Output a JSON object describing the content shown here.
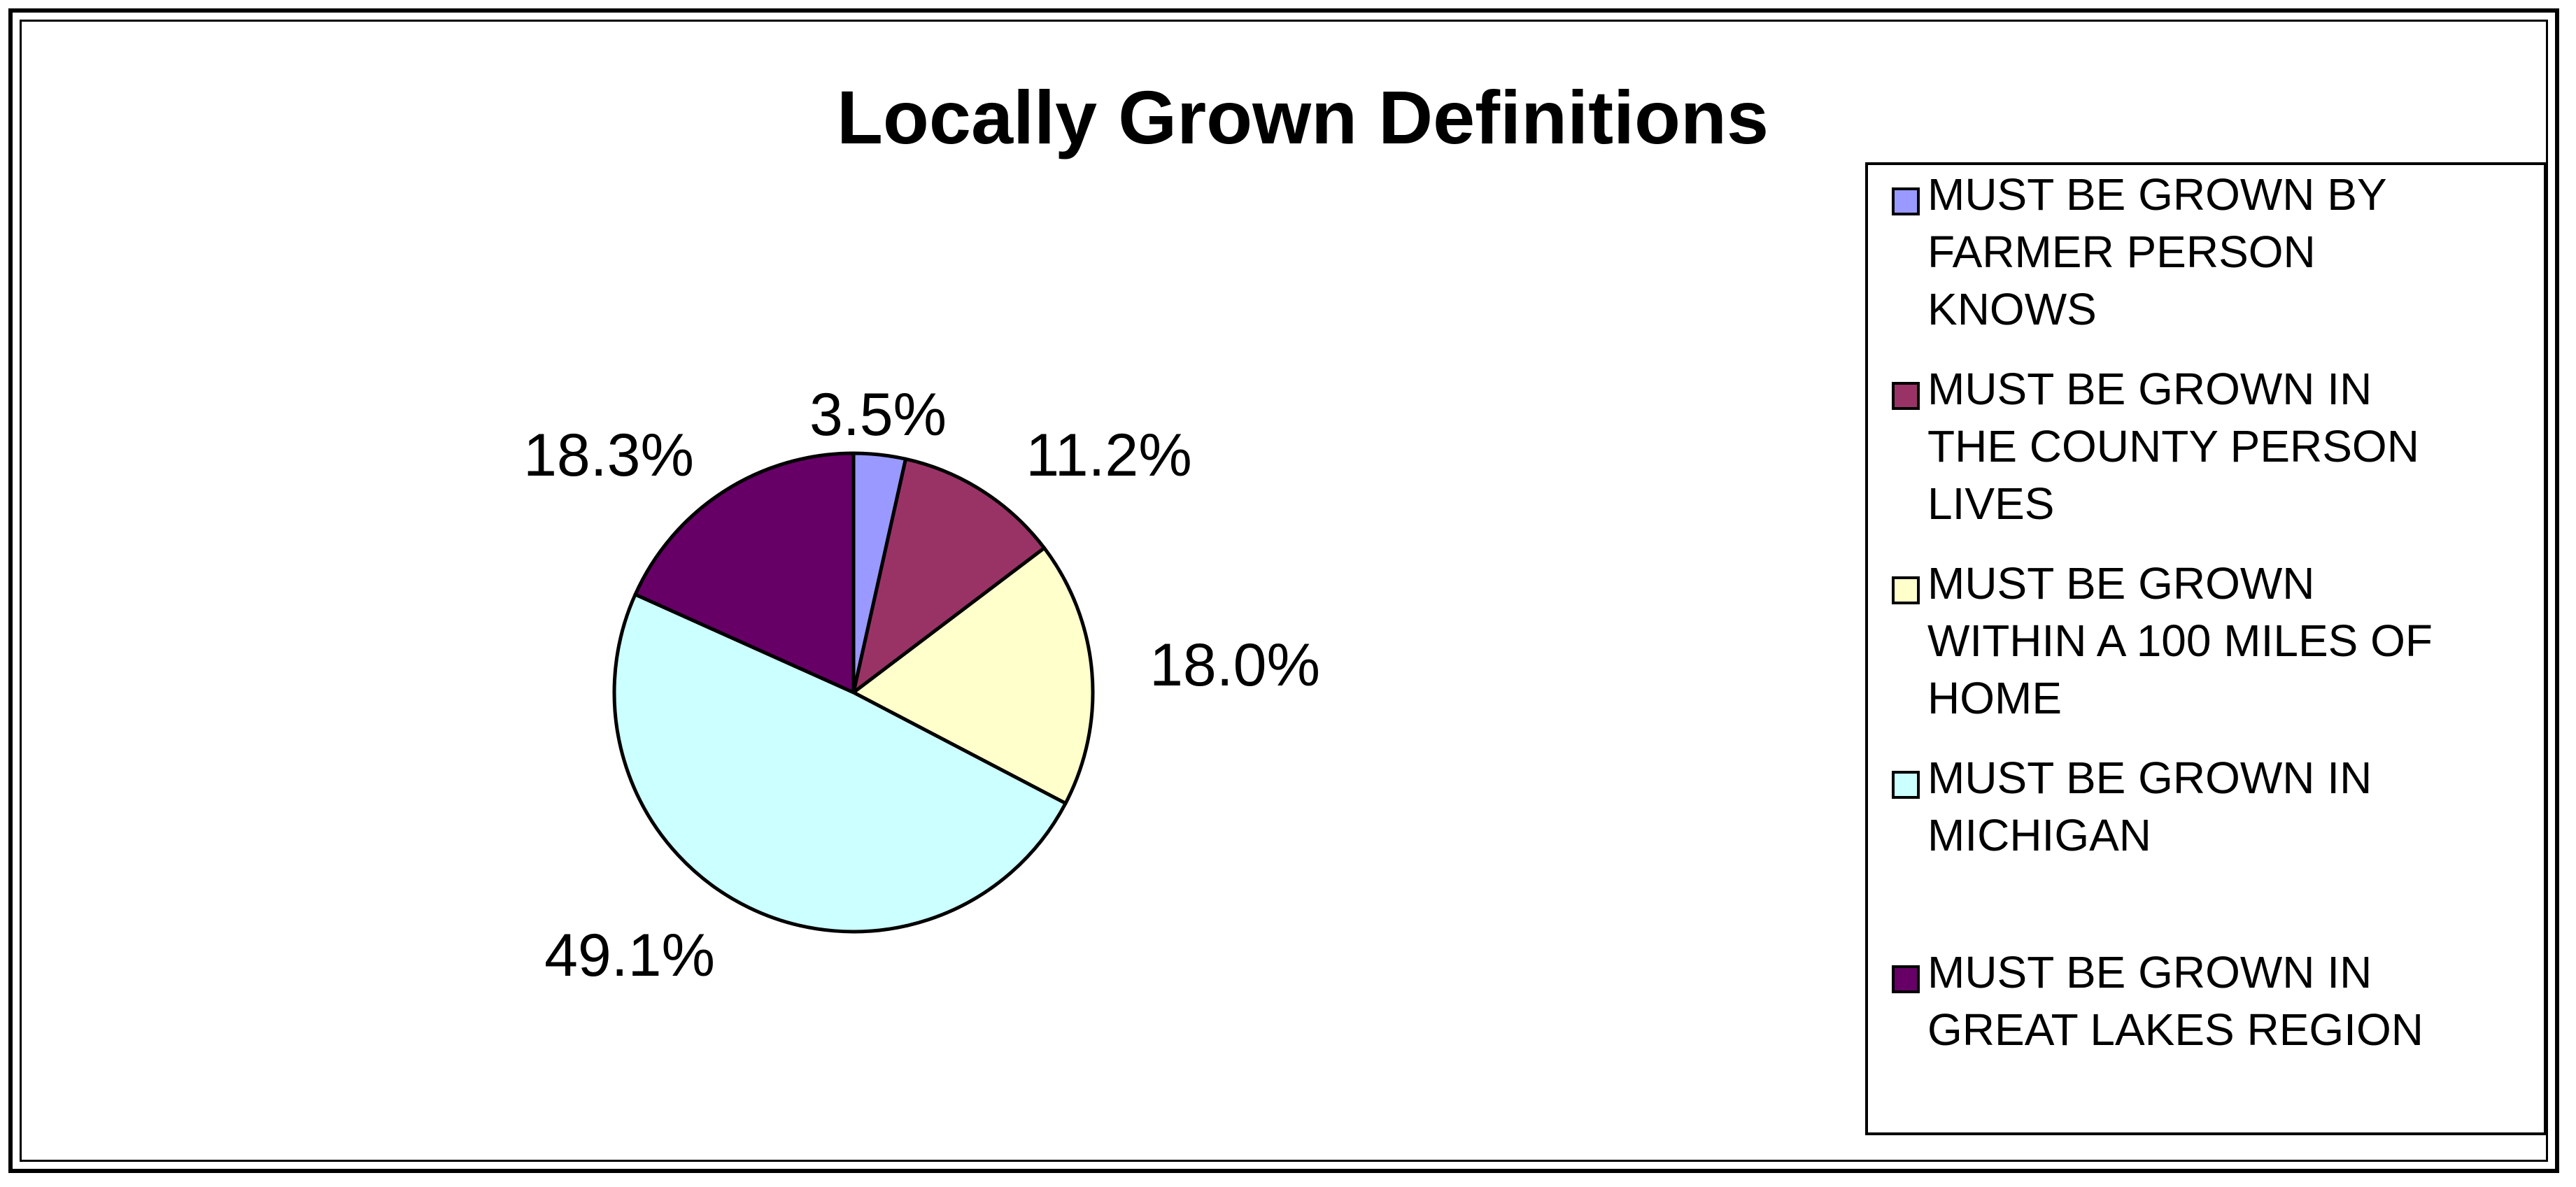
{
  "chart_data": {
    "type": "pie",
    "title": "Locally Grown Definitions",
    "legend_position": "right",
    "slices": [
      {
        "label": "MUST BE GROWN BY FARMER PERSON KNOWS",
        "legend_lines": [
          "MUST BE GROWN BY",
          "FARMER PERSON",
          "KNOWS"
        ],
        "value": 3.5,
        "data_label": "3.5%",
        "color": "#9999ff"
      },
      {
        "label": "MUST BE GROWN IN THE COUNTY PERSON LIVES",
        "legend_lines": [
          "MUST BE GROWN IN",
          "THE COUNTY PERSON",
          "LIVES"
        ],
        "value": 11.2,
        "data_label": "11.2%",
        "color": "#993366"
      },
      {
        "label": "MUST BE GROWN WITHIN A 100 MILES OF HOME",
        "legend_lines": [
          "MUST BE GROWN",
          "WITHIN A 100 MILES OF",
          "HOME"
        ],
        "value": 18.0,
        "data_label": "18.0%",
        "color": "#ffffcc"
      },
      {
        "label": "MUST BE GROWN IN MICHIGAN",
        "legend_lines": [
          "MUST BE GROWN IN",
          "MICHIGAN"
        ],
        "value": 49.1,
        "data_label": "49.1%",
        "color": "#ccffff"
      },
      {
        "label": "MUST BE GROWN IN GREAT LAKES REGION",
        "legend_lines": [
          "MUST BE GROWN IN",
          "GREAT LAKES REGION"
        ],
        "value": 18.3,
        "data_label": "18.3%",
        "color": "#660066"
      }
    ]
  }
}
